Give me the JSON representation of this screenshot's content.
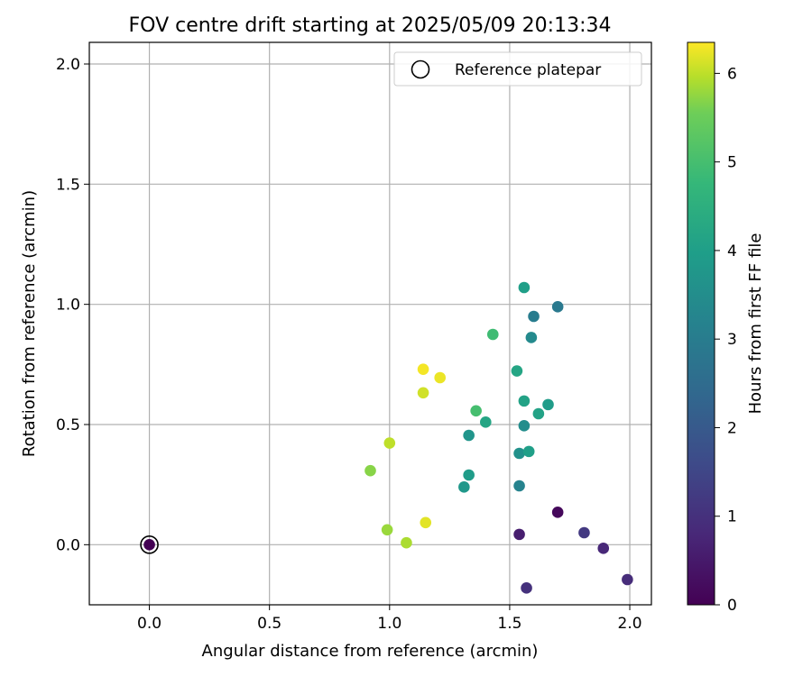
{
  "chart_data": {
    "type": "scatter",
    "title": "FOV centre drift starting at 2025/05/09 20:13:34",
    "xlabel": "Angular distance from reference (arcmin)",
    "ylabel": "Rotation from reference (arcmin)",
    "xlim": [
      -0.25,
      2.09
    ],
    "ylim": [
      -0.25,
      2.09
    ],
    "xticks": [
      0.0,
      0.5,
      1.0,
      1.5,
      2.0
    ],
    "yticks": [
      0.0,
      0.5,
      1.0,
      1.5,
      2.0
    ],
    "xtick_labels": [
      "0.0",
      "0.5",
      "1.0",
      "1.5",
      "2.0"
    ],
    "ytick_labels": [
      "0.0",
      "0.5",
      "1.0",
      "1.5",
      "2.0"
    ],
    "grid": true,
    "legend": {
      "placement": "top-right",
      "entries": [
        "Reference platepar"
      ]
    },
    "colormap": "viridis",
    "colorbar": {
      "label": "Hours from first FF file",
      "range": [
        0,
        6.35
      ],
      "ticks": [
        0,
        1,
        2,
        3,
        4,
        5,
        6
      ],
      "tick_labels": [
        "0",
        "1",
        "2",
        "3",
        "4",
        "5",
        "6"
      ]
    },
    "reference": {
      "x": 0.0,
      "y": 0.0
    },
    "series": [
      {
        "points": [
          {
            "x": 0.0,
            "y": 0.0,
            "hours": 0.0
          },
          {
            "x": 1.7,
            "y": 0.135,
            "hours": 0.15
          },
          {
            "x": 1.54,
            "y": 0.043,
            "hours": 0.6
          },
          {
            "x": 1.89,
            "y": -0.015,
            "hours": 0.8
          },
          {
            "x": 1.99,
            "y": -0.145,
            "hours": 0.9
          },
          {
            "x": 1.57,
            "y": -0.18,
            "hours": 1.0
          },
          {
            "x": 1.81,
            "y": 0.05,
            "hours": 1.2
          },
          {
            "x": 1.7,
            "y": 0.99,
            "hours": 2.9
          },
          {
            "x": 1.6,
            "y": 0.95,
            "hours": 3.0
          },
          {
            "x": 1.54,
            "y": 0.245,
            "hours": 3.2
          },
          {
            "x": 1.59,
            "y": 0.862,
            "hours": 3.4
          },
          {
            "x": 1.56,
            "y": 0.495,
            "hours": 3.5
          },
          {
            "x": 1.54,
            "y": 0.38,
            "hours": 3.6
          },
          {
            "x": 1.33,
            "y": 0.455,
            "hours": 3.7
          },
          {
            "x": 1.31,
            "y": 0.24,
            "hours": 3.8
          },
          {
            "x": 1.33,
            "y": 0.29,
            "hours": 3.9
          },
          {
            "x": 1.66,
            "y": 0.583,
            "hours": 3.9
          },
          {
            "x": 1.56,
            "y": 1.07,
            "hours": 4.0
          },
          {
            "x": 1.58,
            "y": 0.388,
            "hours": 4.0
          },
          {
            "x": 1.56,
            "y": 0.598,
            "hours": 4.1
          },
          {
            "x": 1.62,
            "y": 0.545,
            "hours": 4.1
          },
          {
            "x": 1.53,
            "y": 0.723,
            "hours": 4.2
          },
          {
            "x": 1.4,
            "y": 0.51,
            "hours": 4.2
          },
          {
            "x": 1.43,
            "y": 0.875,
            "hours": 4.9
          },
          {
            "x": 1.36,
            "y": 0.557,
            "hours": 5.0
          },
          {
            "x": 0.92,
            "y": 0.308,
            "hours": 5.7
          },
          {
            "x": 0.99,
            "y": 0.062,
            "hours": 5.8
          },
          {
            "x": 1.07,
            "y": 0.008,
            "hours": 5.9
          },
          {
            "x": 1.0,
            "y": 0.423,
            "hours": 6.0
          },
          {
            "x": 1.14,
            "y": 0.632,
            "hours": 6.1
          },
          {
            "x": 1.15,
            "y": 0.092,
            "hours": 6.2
          },
          {
            "x": 1.21,
            "y": 0.695,
            "hours": 6.25
          },
          {
            "x": 1.14,
            "y": 0.73,
            "hours": 6.3
          }
        ]
      }
    ]
  }
}
